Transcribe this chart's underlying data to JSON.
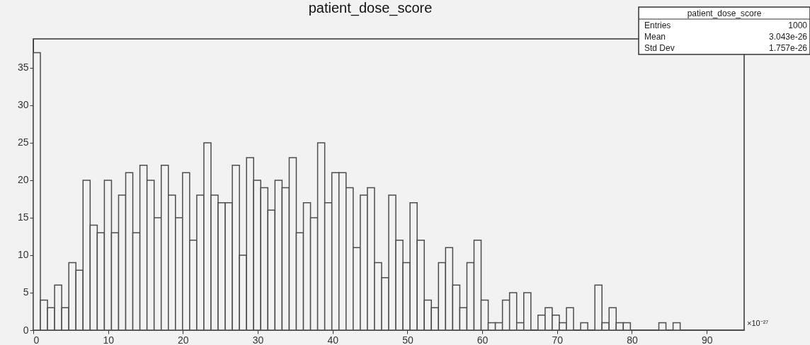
{
  "chart_data": {
    "type": "histogram",
    "title": "patient_dose_score",
    "bins": [
      0,
      0.95,
      1.9,
      2.85,
      3.8,
      4.75,
      5.7,
      6.65,
      7.6,
      8.55,
      9.5,
      10.45,
      11.4,
      12.35,
      13.3,
      14.25,
      15.2,
      16.15,
      17.1,
      18.05,
      19,
      19.95,
      20.9,
      21.85,
      22.8,
      23.75,
      24.7,
      25.65,
      26.6,
      27.55,
      28.5,
      29.45,
      30.4,
      31.35,
      32.3,
      33.25,
      34.2,
      35.15,
      36.1,
      37.05,
      38,
      38.95,
      39.9,
      40.85,
      41.8,
      42.75,
      43.7,
      44.65,
      45.6,
      46.55,
      47.5,
      48.45,
      49.4,
      50.35,
      51.3,
      52.25,
      53.2,
      54.15,
      55.1,
      56.05,
      57,
      57.95,
      58.9,
      59.85,
      60.8,
      61.75,
      62.7,
      63.65,
      64.6,
      65.55,
      66.5,
      67.45,
      68.4,
      69.35,
      70.3,
      71.25,
      72.2,
      73.15,
      74.1,
      75.05,
      76,
      76.95,
      77.9,
      78.85,
      79.8,
      80.75,
      81.7,
      82.65,
      83.6,
      84.55,
      85.5,
      86.45,
      87.4,
      88.35,
      89.3,
      90.25,
      91.2,
      92.15,
      93.1,
      94.05,
      95
    ],
    "values": [
      37,
      4,
      3,
      6,
      3,
      9,
      8,
      20,
      14,
      13,
      20,
      13,
      18,
      21,
      13,
      22,
      20,
      15,
      22,
      18,
      15,
      21,
      12,
      18,
      25,
      18,
      17,
      17,
      22,
      10,
      23,
      20,
      19,
      16,
      20,
      19,
      23,
      13,
      17,
      15,
      25,
      17,
      21,
      21,
      19,
      11,
      18,
      19,
      9,
      7,
      18,
      12,
      9,
      17,
      12,
      4,
      3,
      9,
      11,
      6,
      3,
      9,
      12,
      4,
      1,
      1,
      4,
      5,
      1,
      5,
      0,
      2,
      3,
      2,
      1,
      3,
      0,
      1,
      0,
      6,
      1,
      3,
      1,
      1,
      0,
      0,
      0,
      0,
      1,
      0,
      1,
      0,
      0,
      0,
      0,
      0,
      0,
      0,
      0,
      0
    ],
    "color": "#4d4d4d",
    "xlim": [
      0,
      95
    ],
    "xticks": [
      0,
      10,
      20,
      30,
      40,
      50,
      60,
      70,
      80,
      90
    ],
    "ylim": [
      0,
      38.85
    ],
    "yticks": [
      0,
      5,
      10,
      15,
      20,
      25,
      30,
      35
    ],
    "grid": false,
    "annotations": [
      "patient_dose_score",
      "Entries",
      "1000",
      "Mean",
      "3.043e-26",
      "Std Dev",
      "1.757e-26",
      "×10⁻²⁷"
    ]
  }
}
